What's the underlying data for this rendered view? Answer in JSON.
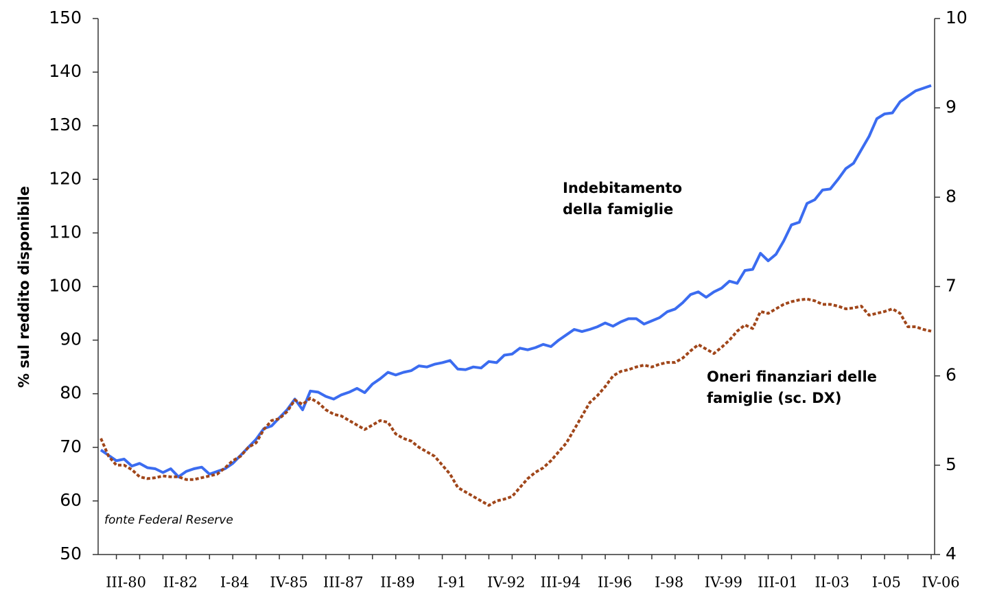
{
  "chart_data": {
    "type": "line",
    "y_label": "% sul reddito disponibile",
    "source": "fonte Federal Reserve",
    "categories": [
      null,
      null,
      "III-80",
      null,
      null,
      null,
      null,
      null,
      null,
      "II-82",
      null,
      null,
      null,
      null,
      null,
      null,
      "I-84",
      null,
      null,
      null,
      null,
      null,
      null,
      "IV-85",
      null,
      null,
      null,
      null,
      null,
      null,
      "III-87",
      null,
      null,
      null,
      null,
      null,
      null,
      "II-89",
      null,
      null,
      null,
      null,
      null,
      null,
      "I-91",
      null,
      null,
      null,
      null,
      null,
      null,
      "IV-92",
      null,
      null,
      null,
      null,
      null,
      null,
      "III-94",
      null,
      null,
      null,
      null,
      null,
      null,
      "II-96",
      null,
      null,
      null,
      null,
      null,
      null,
      "I-98",
      null,
      null,
      null,
      null,
      null,
      null,
      "IV-99",
      null,
      null,
      null,
      null,
      null,
      null,
      "III-01",
      null,
      null,
      null,
      null,
      null,
      null,
      "II-03",
      null,
      null,
      null,
      null,
      null,
      null,
      "I-05",
      null,
      null,
      null,
      null,
      null,
      null,
      "IV-06"
    ],
    "ylim": [
      50,
      150
    ],
    "yticks": [
      50,
      60,
      70,
      80,
      90,
      100,
      110,
      120,
      130,
      140,
      150
    ],
    "y2lim": [
      4,
      10
    ],
    "y2ticks": [
      4,
      5,
      6,
      7,
      8,
      9,
      10
    ],
    "series": [
      {
        "label_lines": [
          "Indebitamento",
          "della famiglie"
        ],
        "color": "#3b6cf0",
        "values": [
          69.5,
          68.5,
          67.5,
          67.8,
          66.5,
          67,
          66.2,
          66,
          65.3,
          66,
          64.5,
          65.5,
          66,
          66.3,
          65,
          65.5,
          66,
          67,
          68.5,
          70,
          71.5,
          73.5,
          74,
          75.5,
          77,
          79,
          77,
          80.5,
          80.3,
          79.5,
          79,
          79.8,
          80.3,
          81,
          80.2,
          81.8,
          82.8,
          84,
          83.5,
          84,
          84.3,
          85.2,
          85,
          85.5,
          85.8,
          86.2,
          84.6,
          84.5,
          85,
          84.8,
          86,
          85.8,
          87.2,
          87.4,
          88.5,
          88.2,
          88.6,
          89.2,
          88.8,
          90,
          91,
          92,
          91.6,
          92,
          92.5,
          93.2,
          92.6,
          93.4,
          94,
          94,
          93,
          93.6,
          94.2,
          95.3,
          95.8,
          97,
          98.5,
          99,
          98,
          99,
          99.7,
          101,
          100.6,
          103,
          103.2,
          106.2,
          104.8,
          106,
          108.5,
          111.5,
          112,
          115.5,
          116.2,
          118,
          118.2,
          120,
          122,
          123,
          125.5,
          128,
          131.3,
          132.2,
          132.4,
          134.5,
          135.5,
          136.5,
          137,
          137.5
        ]
      },
      {
        "label_lines": [
          "Oneri finanziari delle",
          "famiglie (sc. DX)"
        ],
        "color": "#a0461a",
        "dashed": true,
        "axis": "y2",
        "values": [
          5.3,
          5.1,
          5.0,
          5.0,
          4.95,
          4.87,
          4.85,
          4.86,
          4.88,
          4.87,
          4.87,
          4.84,
          4.84,
          4.86,
          4.88,
          4.9,
          4.97,
          5.05,
          5.1,
          5.2,
          5.25,
          5.4,
          5.5,
          5.52,
          5.6,
          5.73,
          5.68,
          5.75,
          5.7,
          5.62,
          5.57,
          5.55,
          5.5,
          5.45,
          5.4,
          5.45,
          5.5,
          5.48,
          5.35,
          5.3,
          5.27,
          5.2,
          5.15,
          5.1,
          5.0,
          4.9,
          4.75,
          4.7,
          4.65,
          4.6,
          4.55,
          4.6,
          4.62,
          4.65,
          4.75,
          4.85,
          4.92,
          4.97,
          5.05,
          5.15,
          5.25,
          5.4,
          5.55,
          5.7,
          5.78,
          5.88,
          6.0,
          6.05,
          6.07,
          6.1,
          6.12,
          6.1,
          6.13,
          6.15,
          6.15,
          6.2,
          6.28,
          6.35,
          6.3,
          6.25,
          6.32,
          6.4,
          6.5,
          6.57,
          6.53,
          6.72,
          6.7,
          6.75,
          6.8,
          6.83,
          6.85,
          6.86,
          6.84,
          6.8,
          6.8,
          6.78,
          6.75,
          6.76,
          6.78,
          6.68,
          6.7,
          6.72,
          6.75,
          6.7,
          6.55,
          6.55,
          6.52,
          6.5
        ]
      }
    ]
  }
}
